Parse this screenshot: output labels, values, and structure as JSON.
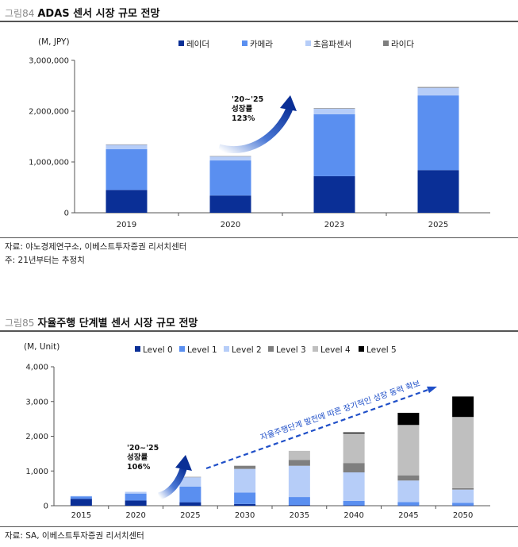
{
  "figures": [
    {
      "number": "그림84",
      "title": "ADAS 센서 시장 규모 전망",
      "source": "자료: 야노경제연구소, 이베스트투자증권 리서치센터",
      "footnote": "주: 21년부터는 추정치"
    },
    {
      "number": "그림85",
      "title": "자율주행 단계별 센서 시장 규모 전망",
      "source": "자료: SA, 이베스트투자증권 리서치센터"
    }
  ],
  "chart_data": [
    {
      "type": "bar",
      "stacked": true,
      "unit_label": "(M, JPY)",
      "categories": [
        "2019",
        "2020",
        "2023",
        "2025"
      ],
      "ylim": [
        0,
        3000000
      ],
      "y_ticks": [
        "0",
        "1,000,000",
        "2,000,000",
        "3,000,000"
      ],
      "series": [
        {
          "name": "레이더",
          "color": "#0a2f96",
          "values": [
            450000,
            340000,
            720000,
            840000
          ]
        },
        {
          "name": "카메라",
          "color": "#5a8ff0",
          "values": [
            800000,
            690000,
            1220000,
            1470000
          ]
        },
        {
          "name": "초음파센서",
          "color": "#b6cdf8",
          "values": [
            90000,
            80000,
            110000,
            150000
          ]
        },
        {
          "name": "라이다",
          "color": "#7f7f7f",
          "values": [
            5000,
            5000,
            10000,
            15000
          ]
        }
      ],
      "annotation": {
        "lines": [
          "'20~'25",
          "성장률",
          "123%"
        ]
      }
    },
    {
      "type": "bar",
      "stacked": true,
      "unit_label": "(M, Unit)",
      "categories": [
        "2015",
        "2020",
        "2025",
        "2030",
        "2035",
        "2040",
        "2045",
        "2050"
      ],
      "ylim": [
        0,
        4000
      ],
      "y_ticks": [
        "0",
        "1,000",
        "2,000",
        "3,000",
        "4,000"
      ],
      "series": [
        {
          "name": "Level 0",
          "color": "#0a2f96",
          "values": [
            200,
            150,
            100,
            50,
            20,
            10,
            5,
            5
          ]
        },
        {
          "name": "Level 1",
          "color": "#5a8ff0",
          "values": [
            70,
            200,
            450,
            330,
            230,
            130,
            100,
            80
          ]
        },
        {
          "name": "Level 2",
          "color": "#b6cdf8",
          "values": [
            10,
            50,
            270,
            680,
            900,
            820,
            620,
            380
          ]
        },
        {
          "name": "Level 3",
          "color": "#7f7f7f",
          "values": [
            0,
            0,
            10,
            90,
            170,
            270,
            150,
            40
          ]
        },
        {
          "name": "Level 4",
          "color": "#bfbfbf",
          "values": [
            0,
            0,
            0,
            0,
            260,
            850,
            1450,
            2050
          ]
        },
        {
          "name": "Level 5",
          "color": "#000000",
          "values": [
            0,
            0,
            0,
            0,
            0,
            30,
            350,
            590
          ]
        }
      ],
      "annotation": {
        "lines": [
          "'20~'25",
          "성장률",
          "106%"
        ]
      },
      "trend_label": "자율주행단계 발전에 따른 장기적인 성장 동력 확보"
    }
  ]
}
